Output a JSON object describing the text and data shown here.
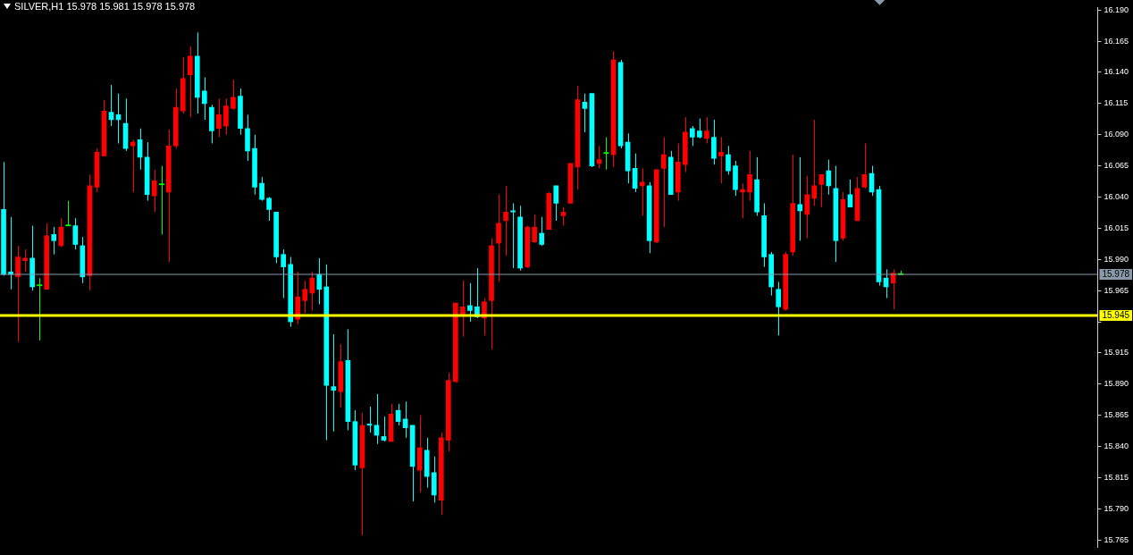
{
  "chart_data": {
    "type": "candlestick",
    "title": "SILVER,H1 15.978 15.981 15.978 15.978",
    "categories": [
      null,
      null,
      null,
      null,
      null,
      null,
      null,
      null,
      null,
      null,
      null,
      null,
      null,
      null,
      null,
      null,
      null,
      null,
      null,
      null,
      null,
      null,
      null,
      null,
      null,
      null,
      null,
      null,
      null,
      null,
      null,
      null,
      null,
      null,
      null,
      null,
      null,
      null,
      null,
      null,
      null,
      null,
      null,
      null,
      null,
      null,
      null,
      null,
      null,
      null,
      null,
      null,
      null,
      null,
      null,
      null,
      null,
      null,
      null,
      null,
      null,
      null,
      null,
      null,
      null,
      null,
      null,
      null,
      null,
      null,
      null,
      null,
      null,
      null,
      null,
      null,
      null,
      null,
      null,
      null,
      null,
      null,
      null,
      null,
      null,
      null,
      null,
      null,
      null,
      null,
      null,
      null,
      null,
      null,
      null,
      null,
      null,
      null,
      null,
      null,
      null,
      null,
      null,
      null,
      null,
      null,
      null,
      null,
      null,
      null,
      null,
      null,
      null,
      null,
      null,
      null,
      null,
      null,
      null,
      null,
      null,
      null,
      null,
      null,
      null,
      null,
      null,
      null,
      null,
      null,
      null,
      null,
      null,
      null,
      null,
      null,
      null,
      null,
      null,
      null,
      null,
      null,
      null,
      null,
      null,
      null,
      null,
      null,
      null,
      null,
      null,
      null,
      null
    ],
    "ohlc": [
      [
        16.03,
        16.068,
        15.977,
        15.978
      ],
      [
        15.98,
        16.024,
        15.966,
        15.978
      ],
      [
        15.976,
        16.001,
        15.924,
        15.992
      ],
      [
        15.989,
        15.998,
        15.98,
        15.991
      ],
      [
        15.991,
        16.017,
        15.965,
        15.968
      ],
      [
        15.969,
        15.975,
        15.925,
        15.969
      ],
      [
        15.966,
        16.019,
        15.966,
        16.009
      ],
      [
        16.01,
        16.016,
        15.994,
        16.005
      ],
      [
        16.001,
        16.023,
        16.0,
        16.016
      ],
      [
        16.017,
        16.037,
        16.017,
        16.017
      ],
      [
        16.017,
        16.023,
        15.998,
        16.002
      ],
      [
        16.001,
        16.008,
        15.971,
        15.976
      ],
      [
        15.977,
        16.058,
        15.965,
        16.049
      ],
      [
        16.048,
        16.079,
        16.044,
        16.076
      ],
      [
        16.073,
        16.118,
        16.073,
        16.109
      ],
      [
        16.108,
        16.13,
        16.097,
        16.102
      ],
      [
        16.106,
        16.123,
        16.083,
        16.102
      ],
      [
        16.099,
        16.119,
        16.077,
        16.079
      ],
      [
        16.081,
        16.086,
        16.044,
        16.084
      ],
      [
        16.086,
        16.095,
        16.062,
        16.072
      ],
      [
        16.072,
        16.084,
        16.037,
        16.042
      ],
      [
        16.041,
        16.062,
        16.028,
        16.053
      ],
      [
        16.05,
        16.065,
        16.01,
        16.05
      ],
      [
        16.044,
        16.094,
        15.988,
        16.081
      ],
      [
        16.081,
        16.127,
        16.079,
        16.112
      ],
      [
        16.109,
        16.152,
        16.107,
        16.135
      ],
      [
        16.138,
        16.161,
        16.104,
        16.153
      ],
      [
        16.153,
        16.172,
        16.107,
        16.12
      ],
      [
        16.125,
        16.136,
        16.102,
        16.115
      ],
      [
        16.112,
        16.114,
        16.083,
        16.093
      ],
      [
        16.095,
        16.119,
        16.088,
        16.106
      ],
      [
        16.097,
        16.119,
        16.09,
        16.113
      ],
      [
        16.111,
        16.134,
        16.11,
        16.12
      ],
      [
        16.121,
        16.127,
        16.09,
        16.095
      ],
      [
        16.095,
        16.106,
        16.069,
        16.077
      ],
      [
        16.079,
        16.09,
        16.042,
        16.048
      ],
      [
        16.051,
        16.056,
        16.037,
        16.038
      ],
      [
        16.039,
        16.04,
        16.021,
        16.03
      ],
      [
        16.028,
        16.028,
        15.987,
        15.992
      ],
      [
        15.994,
        15.998,
        15.959,
        15.984
      ],
      [
        15.986,
        15.992,
        15.936,
        15.94
      ],
      [
        15.942,
        15.98,
        15.938,
        15.96
      ],
      [
        15.957,
        15.973,
        15.947,
        15.966
      ],
      [
        15.963,
        15.98,
        15.949,
        15.975
      ],
      [
        15.978,
        15.991,
        15.954,
        15.966
      ],
      [
        15.968,
        15.986,
        15.845,
        15.889
      ],
      [
        15.888,
        15.93,
        15.852,
        15.885
      ],
      [
        15.884,
        15.922,
        15.871,
        15.908
      ],
      [
        15.909,
        15.934,
        15.853,
        15.86
      ],
      [
        15.86,
        15.869,
        15.821,
        15.825
      ],
      [
        15.823,
        15.867,
        15.769,
        15.857
      ],
      [
        15.858,
        15.872,
        15.851,
        15.857
      ],
      [
        15.857,
        15.882,
        15.842,
        15.849
      ],
      [
        15.848,
        15.864,
        15.844,
        15.845
      ],
      [
        15.844,
        15.874,
        15.844,
        15.866
      ],
      [
        15.869,
        15.874,
        15.857,
        15.86
      ],
      [
        15.862,
        15.876,
        15.847,
        15.855
      ],
      [
        15.857,
        15.857,
        15.796,
        15.824
      ],
      [
        15.821,
        15.865,
        15.803,
        15.839
      ],
      [
        15.837,
        15.847,
        15.807,
        15.816
      ],
      [
        15.819,
        15.832,
        15.795,
        15.801
      ],
      [
        15.797,
        15.851,
        15.785,
        15.847
      ],
      [
        15.845,
        15.899,
        15.836,
        15.893
      ],
      [
        15.892,
        15.955,
        15.891,
        15.955
      ],
      [
        15.946,
        15.973,
        15.928,
        15.952
      ],
      [
        15.953,
        15.971,
        15.94,
        15.949
      ],
      [
        15.952,
        15.983,
        15.943,
        15.944
      ],
      [
        15.943,
        15.959,
        15.929,
        15.956
      ],
      [
        15.957,
        16.007,
        15.918,
        16.001
      ],
      [
        16.003,
        16.042,
        15.972,
        16.019
      ],
      [
        16.021,
        16.049,
        15.993,
        16.028
      ],
      [
        16.029,
        16.035,
        15.983,
        16.028
      ],
      [
        16.024,
        16.033,
        15.981,
        15.983
      ],
      [
        15.984,
        16.017,
        15.983,
        16.016
      ],
      [
        16.004,
        16.026,
        16.003,
        16.016
      ],
      [
        16.011,
        16.024,
        16.001,
        16.002
      ],
      [
        16.014,
        16.044,
        16.014,
        16.043
      ],
      [
        16.049,
        16.049,
        16.021,
        16.035
      ],
      [
        16.025,
        16.032,
        16.017,
        16.028
      ],
      [
        16.035,
        16.067,
        16.035,
        16.067
      ],
      [
        16.064,
        16.129,
        16.046,
        16.118
      ],
      [
        16.116,
        16.123,
        16.092,
        16.111
      ],
      [
        16.123,
        16.123,
        16.064,
        16.065
      ],
      [
        16.067,
        16.081,
        16.063,
        16.07
      ],
      [
        16.075,
        16.088,
        16.062,
        16.075
      ],
      [
        16.074,
        16.157,
        16.064,
        16.15
      ],
      [
        16.148,
        16.15,
        16.079,
        16.081
      ],
      [
        16.084,
        16.091,
        16.051,
        16.061
      ],
      [
        16.063,
        16.075,
        16.044,
        16.047
      ],
      [
        16.049,
        16.063,
        16.025,
        16.052
      ],
      [
        16.049,
        16.052,
        15.995,
        16.005
      ],
      [
        16.004,
        16.062,
        16.003,
        16.062
      ],
      [
        16.063,
        16.088,
        16.016,
        16.074
      ],
      [
        16.072,
        16.077,
        16.042,
        16.042
      ],
      [
        16.044,
        16.083,
        16.037,
        16.068
      ],
      [
        16.066,
        16.104,
        16.06,
        16.092
      ],
      [
        16.095,
        16.097,
        16.081,
        16.088
      ],
      [
        16.093,
        16.103,
        16.087,
        16.088
      ],
      [
        16.087,
        16.104,
        16.083,
        16.093
      ],
      [
        16.088,
        16.102,
        16.066,
        16.071
      ],
      [
        16.073,
        16.088,
        16.051,
        16.076
      ],
      [
        16.074,
        16.081,
        16.058,
        16.061
      ],
      [
        16.065,
        16.069,
        16.041,
        16.046
      ],
      [
        16.044,
        16.051,
        16.023,
        16.046
      ],
      [
        16.044,
        16.077,
        16.037,
        16.058
      ],
      [
        16.054,
        16.072,
        16.025,
        16.028
      ],
      [
        16.025,
        16.035,
        15.984,
        15.992
      ],
      [
        15.994,
        15.996,
        15.961,
        15.968
      ],
      [
        15.966,
        15.972,
        15.929,
        15.952
      ],
      [
        15.95,
        15.996,
        15.949,
        15.994
      ],
      [
        15.996,
        16.074,
        15.993,
        16.035
      ],
      [
        16.034,
        16.072,
        16.005,
        16.029
      ],
      [
        16.026,
        16.057,
        16.007,
        16.042
      ],
      [
        16.039,
        16.102,
        16.033,
        16.049
      ],
      [
        16.05,
        16.058,
        16.032,
        16.058
      ],
      [
        16.061,
        16.07,
        16.042,
        16.049
      ],
      [
        16.047,
        16.065,
        15.988,
        16.005
      ],
      [
        16.007,
        16.044,
        16.005,
        16.038
      ],
      [
        16.042,
        16.054,
        16.032,
        16.032
      ],
      [
        16.021,
        16.056,
        16.021,
        16.047
      ],
      [
        16.048,
        16.083,
        16.047,
        16.058
      ],
      [
        16.059,
        16.065,
        16.041,
        16.044
      ],
      [
        16.046,
        16.049,
        15.969,
        15.972
      ],
      [
        15.975,
        15.982,
        15.959,
        15.968
      ],
      [
        15.971,
        15.982,
        15.95,
        15.979
      ],
      [
        15.978,
        15.981,
        15.978,
        15.978
      ],
      null,
      null,
      null,
      null,
      null,
      null,
      null,
      null,
      null,
      null,
      null,
      null,
      null,
      null,
      null,
      null,
      null,
      null,
      null,
      null,
      null,
      null,
      null,
      null,
      null,
      null,
      null
    ],
    "colors": [
      "#00ffff",
      "#00ffff",
      "#ff0000",
      "#ff0000",
      "#00ffff",
      "#00ff00",
      "#ff0000",
      "#00ffff",
      "#ff0000",
      "#00ff00",
      "#00ffff",
      "#00ffff",
      "#ff0000",
      "#ff0000",
      "#ff0000",
      "#00ffff",
      "#00ffff",
      "#00ffff",
      "#ff0000",
      "#00ffff",
      "#00ffff",
      "#ff0000",
      "#00ff00",
      "#ff0000",
      "#ff0000",
      "#ff0000",
      "#ff0000",
      "#00ffff",
      "#00ffff",
      "#00ffff",
      "#ff0000",
      "#ff0000",
      "#ff0000",
      "#00ffff",
      "#00ffff",
      "#00ffff",
      "#00ffff",
      "#00ffff",
      "#00ffff",
      "#00ffff",
      "#00ffff",
      "#ff0000",
      "#ff0000",
      "#ff0000",
      "#00ffff",
      "#00ffff",
      "#00ffff",
      "#ff0000",
      "#00ffff",
      "#00ffff",
      "#ff0000",
      "#00ffff",
      "#00ffff",
      "#00ffff",
      "#ff0000",
      "#00ffff",
      "#00ffff",
      "#00ffff",
      "#ff0000",
      "#00ffff",
      "#00ffff",
      "#ff0000",
      "#ff0000",
      "#ff0000",
      "#ff0000",
      "#00ffff",
      "#00ffff",
      "#ff0000",
      "#ff0000",
      "#ff0000",
      "#ff0000",
      "#00ffff",
      "#00ffff",
      "#ff0000",
      "#ff0000",
      "#00ffff",
      "#ff0000",
      "#00ffff",
      "#ff0000",
      "#ff0000",
      "#ff0000",
      "#00ffff",
      "#00ffff",
      "#ff0000",
      "#00ff00",
      "#ff0000",
      "#00ffff",
      "#00ffff",
      "#00ffff",
      "#ff0000",
      "#00ffff",
      "#ff0000",
      "#ff0000",
      "#00ffff",
      "#ff0000",
      "#ff0000",
      "#00ffff",
      "#00ffff",
      "#ff0000",
      "#00ffff",
      "#ff0000",
      "#00ffff",
      "#00ffff",
      "#ff0000",
      "#ff0000",
      "#00ffff",
      "#00ffff",
      "#00ffff",
      "#00ffff",
      "#ff0000",
      "#ff0000",
      "#00ffff",
      "#ff0000",
      "#ff0000",
      "#ff0000",
      "#00ffff",
      "#00ffff",
      "#ff0000",
      "#00ffff",
      "#ff0000",
      "#ff0000",
      "#00ffff",
      "#00ffff",
      "#00ffff",
      "#ff0000",
      "#00ff00",
      null,
      null,
      null,
      null,
      null,
      null,
      null,
      null,
      null,
      null,
      null,
      null,
      null,
      null,
      null,
      null,
      null,
      null,
      null,
      null,
      null,
      null,
      null,
      null,
      null,
      null,
      null
    ],
    "ylim": [
      15.759,
      16.192
    ],
    "yticks": [
      {
        "value": 16.19,
        "label": "16.190"
      },
      16.165,
      {
        "value": 16.14,
        "label": "16.140"
      },
      16.115,
      {
        "value": 16.09,
        "label": "16.090"
      },
      16.065,
      {
        "value": 16.04,
        "label": "16.040"
      },
      16.015,
      {
        "value": 15.99,
        "label": "15.990"
      },
      15.965,
      {
        "value": 15.94,
        "label": null
      },
      15.915,
      {
        "value": 15.89,
        "label": "15.890"
      },
      15.865,
      {
        "value": 15.84,
        "label": "15.840"
      },
      15.815,
      {
        "value": 15.79,
        "label": "15.790"
      },
      15.765
    ],
    "tick_labels": "y",
    "ref_lines": [
      {
        "axis": "y",
        "value": 15.978,
        "label": "15.978",
        "color": "#8899aa"
      },
      {
        "axis": "y",
        "value": 15.945,
        "label": "15.945",
        "color": "#ffff00"
      }
    ]
  }
}
